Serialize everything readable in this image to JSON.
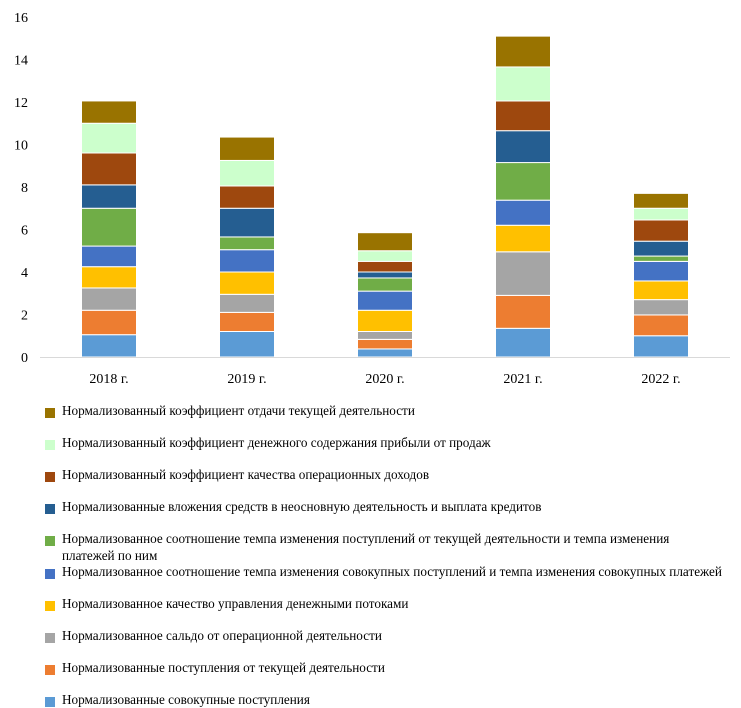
{
  "chart_data": {
    "type": "stacked-bar",
    "categories": [
      "2018 г.",
      "2019 г.",
      "2020 г.",
      "2021 г.",
      "2022 г."
    ],
    "ylim": [
      0,
      16
    ],
    "yticks": [
      0,
      2,
      4,
      6,
      8,
      10,
      12,
      14,
      16
    ],
    "grid": false,
    "legend_position": "bottom",
    "series": [
      {
        "name": "Нормализованные совокупные поступления",
        "color": "#5b9bd5",
        "values": [
          1.05,
          1.2,
          0.38,
          1.35,
          1.0
        ]
      },
      {
        "name": "Нормализованные поступления от текущей деятельности",
        "color": "#ed7d31",
        "values": [
          1.15,
          0.9,
          0.45,
          1.55,
          0.98
        ]
      },
      {
        "name": "Нормализованное сальдо от операционной деятельности",
        "color": "#a5a5a5",
        "values": [
          1.05,
          0.85,
          0.37,
          2.05,
          0.72
        ]
      },
      {
        "name": "Нормализованное качество управления денежными потоками",
        "color": "#ffc000",
        "values": [
          1.0,
          1.05,
          1.0,
          1.25,
          0.88
        ]
      },
      {
        "name": "Нормализованное соотношение темпа изменения совокупных поступлений и темпа изменения совокупных платежей",
        "color": "#4472c4",
        "values": [
          0.97,
          1.05,
          0.9,
          1.18,
          0.92
        ]
      },
      {
        "name": "Нормализованное соотношение темпа изменения поступлений от текущей деятельности и темпа изменения платежей по ним",
        "color": "#70ad47",
        "values": [
          1.78,
          0.6,
          0.62,
          1.77,
          0.25
        ]
      },
      {
        "name": "Нормализованные вложения средств в неосновную деятельность и выплата кредитов",
        "color": "#255e91",
        "values": [
          1.1,
          1.35,
          0.28,
          1.5,
          0.7
        ]
      },
      {
        "name": "Нормализованный коэффициент качества операционных доходов",
        "color": "#9e480e",
        "values": [
          1.5,
          1.05,
          0.5,
          1.4,
          1.0
        ]
      },
      {
        "name": "Нормализованный коэффициент денежного содержания прибыли от продаж",
        "color": "#ccffcc",
        "values": [
          1.4,
          1.2,
          0.5,
          1.6,
          0.55
        ]
      },
      {
        "name": "Нормализованный коэффициент отдачи текущей деятельности",
        "color": "#997300",
        "values": [
          1.05,
          1.1,
          0.85,
          1.45,
          0.7
        ]
      }
    ]
  }
}
